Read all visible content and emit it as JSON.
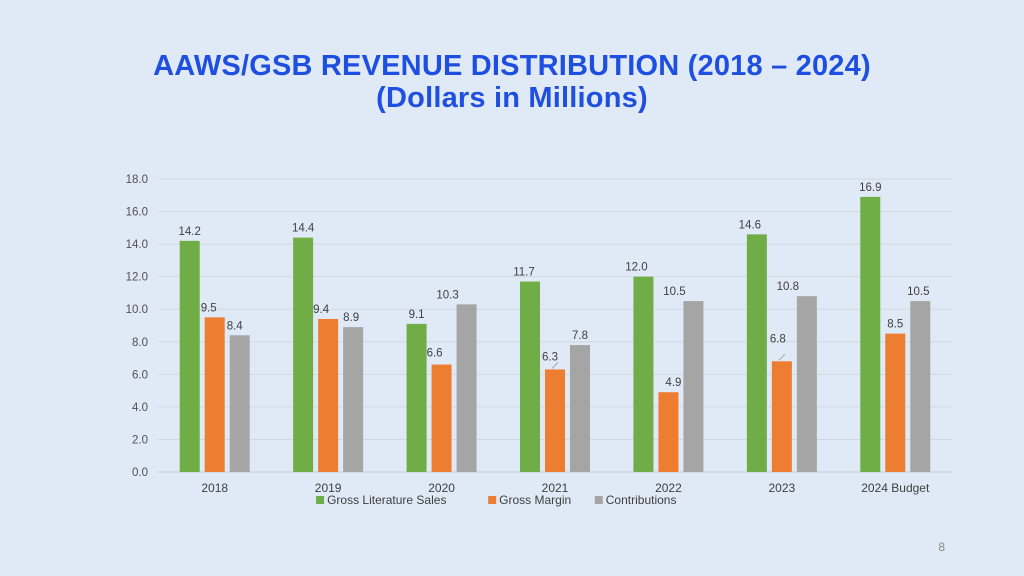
{
  "slide": {
    "title_line1": "AAWS/GSB REVENUE DISTRIBUTION (2018 – 2024)",
    "title_line2": "(Dollars in Millions)",
    "page_number": "8"
  },
  "colors": {
    "background": "#dfeaf6",
    "title": "#1f4fe0",
    "gross_literature_sales": "#70ad47",
    "gross_margin": "#ed7d31",
    "contributions": "#a5a5a5",
    "grid": "#d0d7df"
  },
  "chart_data": {
    "type": "bar",
    "title": "AAWS/GSB REVENUE DISTRIBUTION (2018 – 2024) (Dollars in Millions)",
    "xlabel": "",
    "ylabel": "",
    "ylim": [
      0,
      18
    ],
    "y_ticks": [
      "0.0",
      "2.0",
      "4.0",
      "6.0",
      "8.0",
      "10.0",
      "12.0",
      "14.0",
      "16.0",
      "18.0"
    ],
    "categories": [
      "2018",
      "2019",
      "2020",
      "2021",
      "2022",
      "2023",
      "2024 Budget"
    ],
    "series": [
      {
        "name": "Gross Literature Sales",
        "color": "#70ad47",
        "values": [
          14.2,
          14.4,
          9.1,
          11.7,
          12.0,
          14.6,
          16.9
        ],
        "labels": [
          "14.2",
          "14.4",
          "9.1",
          "11.7",
          "12.0",
          "14.6",
          "16.9"
        ]
      },
      {
        "name": "Gross Margin",
        "color": "#ed7d31",
        "values": [
          9.5,
          9.4,
          6.6,
          6.3,
          4.9,
          6.8,
          8.5
        ],
        "labels": [
          "9.5",
          "9.4",
          "6.6",
          "6.3",
          "4.9",
          "6.8",
          "8.5"
        ]
      },
      {
        "name": "Contributions",
        "color": "#a5a5a5",
        "values": [
          8.4,
          8.9,
          10.3,
          7.8,
          10.5,
          10.8,
          10.5
        ],
        "labels": [
          "8.4",
          "8.9",
          "10.3",
          "7.8",
          "10.5",
          "10.8",
          "10.5"
        ]
      }
    ],
    "legend_position": "bottom",
    "grid": true
  }
}
